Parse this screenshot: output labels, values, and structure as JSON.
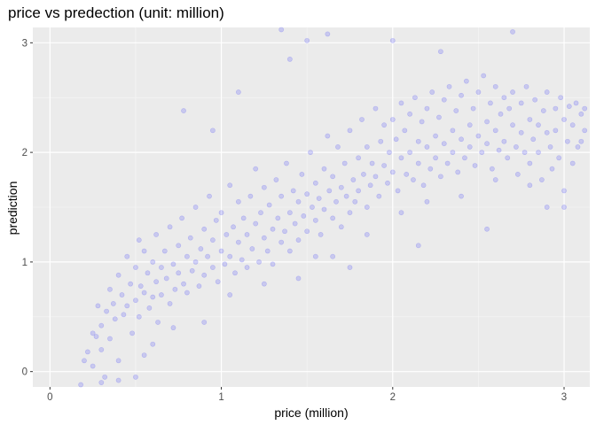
{
  "chart_data": {
    "type": "scatter",
    "title": "price vs predection (unit: million)",
    "xlabel": "price (million)",
    "ylabel": "prediction",
    "xlim": [
      -0.1,
      3.15
    ],
    "ylim": [
      -0.14,
      3.14
    ],
    "x_ticks": [
      0,
      1,
      2,
      3
    ],
    "y_ticks": [
      0,
      1,
      2,
      3
    ],
    "x_tick_labels": [
      "0",
      "1",
      "2",
      "3"
    ],
    "y_tick_labels": [
      "0",
      "1",
      "2",
      "3"
    ],
    "grid": true,
    "legend": "none",
    "series": [
      {
        "color": "#0000ff",
        "opacity": 0.15,
        "points": [
          [
            0.18,
            -0.12
          ],
          [
            0.2,
            0.1
          ],
          [
            0.22,
            0.18
          ],
          [
            0.25,
            0.05
          ],
          [
            0.27,
            0.32
          ],
          [
            0.28,
            0.6
          ],
          [
            0.3,
            0.42
          ],
          [
            0.3,
            0.2
          ],
          [
            0.32,
            -0.05
          ],
          [
            0.33,
            0.55
          ],
          [
            0.35,
            0.75
          ],
          [
            0.35,
            0.3
          ],
          [
            0.37,
            0.62
          ],
          [
            0.38,
            0.48
          ],
          [
            0.4,
            0.88
          ],
          [
            0.4,
            0.1
          ],
          [
            0.42,
            0.7
          ],
          [
            0.43,
            0.52
          ],
          [
            0.45,
            1.05
          ],
          [
            0.45,
            0.6
          ],
          [
            0.47,
            0.8
          ],
          [
            0.48,
            0.35
          ],
          [
            0.5,
            0.95
          ],
          [
            0.5,
            0.65
          ],
          [
            0.52,
            1.2
          ],
          [
            0.52,
            0.5
          ],
          [
            0.53,
            0.78
          ],
          [
            0.55,
            1.1
          ],
          [
            0.55,
            0.72
          ],
          [
            0.57,
            0.9
          ],
          [
            0.58,
            0.58
          ],
          [
            0.6,
            1.0
          ],
          [
            0.6,
            0.68
          ],
          [
            0.62,
            1.25
          ],
          [
            0.62,
            0.82
          ],
          [
            0.63,
            0.45
          ],
          [
            0.65,
            0.95
          ],
          [
            0.65,
            0.7
          ],
          [
            0.67,
            1.1
          ],
          [
            0.68,
            0.85
          ],
          [
            0.7,
            1.32
          ],
          [
            0.7,
            0.62
          ],
          [
            0.72,
            0.98
          ],
          [
            0.73,
            0.75
          ],
          [
            0.75,
            1.15
          ],
          [
            0.75,
            0.9
          ],
          [
            0.77,
            1.4
          ],
          [
            0.78,
            0.8
          ],
          [
            0.8,
            1.05
          ],
          [
            0.8,
            0.72
          ],
          [
            0.82,
            1.22
          ],
          [
            0.83,
            0.92
          ],
          [
            0.85,
            1.5
          ],
          [
            0.85,
            1.0
          ],
          [
            0.87,
            0.78
          ],
          [
            0.88,
            1.12
          ],
          [
            0.9,
            1.3
          ],
          [
            0.9,
            0.88
          ],
          [
            0.92,
            1.05
          ],
          [
            0.93,
            1.6
          ],
          [
            0.95,
            0.95
          ],
          [
            0.95,
            1.2
          ],
          [
            0.97,
            1.38
          ],
          [
            0.98,
            0.82
          ],
          [
            1.0,
            1.1
          ],
          [
            1.0,
            1.45
          ],
          [
            1.02,
            0.98
          ],
          [
            1.03,
            1.25
          ],
          [
            1.05,
            1.7
          ],
          [
            1.05,
            1.05
          ],
          [
            1.07,
            1.32
          ],
          [
            1.08,
            0.9
          ],
          [
            1.1,
            1.18
          ],
          [
            1.1,
            1.55
          ],
          [
            1.12,
            1.02
          ],
          [
            1.13,
            1.4
          ],
          [
            1.15,
            1.25
          ],
          [
            1.15,
            0.95
          ],
          [
            1.17,
            1.6
          ],
          [
            1.18,
            1.12
          ],
          [
            1.2,
            1.35
          ],
          [
            1.2,
            1.85
          ],
          [
            1.22,
            1.0
          ],
          [
            1.23,
            1.45
          ],
          [
            1.25,
            1.22
          ],
          [
            1.25,
            1.68
          ],
          [
            1.27,
            1.1
          ],
          [
            1.28,
            1.52
          ],
          [
            1.3,
            1.3
          ],
          [
            1.3,
            0.98
          ],
          [
            1.32,
            1.75
          ],
          [
            1.33,
            1.4
          ],
          [
            1.35,
            1.18
          ],
          [
            1.35,
            1.6
          ],
          [
            1.37,
            1.28
          ],
          [
            1.38,
            1.9
          ],
          [
            1.4,
            1.45
          ],
          [
            1.4,
            1.1
          ],
          [
            1.42,
            1.65
          ],
          [
            1.43,
            1.35
          ],
          [
            1.45,
            1.55
          ],
          [
            1.45,
            1.2
          ],
          [
            1.47,
            1.8
          ],
          [
            1.48,
            1.42
          ],
          [
            1.5,
            1.62
          ],
          [
            1.5,
            1.28
          ],
          [
            1.52,
            2.0
          ],
          [
            1.53,
            1.5
          ],
          [
            1.55,
            1.72
          ],
          [
            1.55,
            1.38
          ],
          [
            1.57,
            1.58
          ],
          [
            1.58,
            1.25
          ],
          [
            1.6,
            1.85
          ],
          [
            1.6,
            1.48
          ],
          [
            1.62,
            2.15
          ],
          [
            1.63,
            1.65
          ],
          [
            1.65,
            1.4
          ],
          [
            1.65,
            1.78
          ],
          [
            1.67,
            1.55
          ],
          [
            1.68,
            2.05
          ],
          [
            1.7,
            1.68
          ],
          [
            1.7,
            1.32
          ],
          [
            1.72,
            1.9
          ],
          [
            1.73,
            1.6
          ],
          [
            1.75,
            1.45
          ],
          [
            1.75,
            2.2
          ],
          [
            1.77,
            1.75
          ],
          [
            1.78,
            1.55
          ],
          [
            1.8,
            1.95
          ],
          [
            1.8,
            1.65
          ],
          [
            1.82,
            2.3
          ],
          [
            1.83,
            1.8
          ],
          [
            1.85,
            1.5
          ],
          [
            1.85,
            2.05
          ],
          [
            1.87,
            1.7
          ],
          [
            1.88,
            1.9
          ],
          [
            1.9,
            2.4
          ],
          [
            1.9,
            1.78
          ],
          [
            1.92,
            1.6
          ],
          [
            1.93,
            2.1
          ],
          [
            1.95,
            1.88
          ],
          [
            1.95,
            2.25
          ],
          [
            1.97,
            1.72
          ],
          [
            1.98,
            2.0
          ],
          [
            2.0,
            2.3
          ],
          [
            2.0,
            1.82
          ],
          [
            2.02,
            2.12
          ],
          [
            2.03,
            1.65
          ],
          [
            2.05,
            2.45
          ],
          [
            2.05,
            1.95
          ],
          [
            2.07,
            2.2
          ],
          [
            2.08,
            1.8
          ],
          [
            2.1,
            2.35
          ],
          [
            2.1,
            2.0
          ],
          [
            2.12,
            1.75
          ],
          [
            2.13,
            2.5
          ],
          [
            2.15,
            2.1
          ],
          [
            2.15,
            1.9
          ],
          [
            2.17,
            2.28
          ],
          [
            2.18,
            1.7
          ],
          [
            2.2,
            2.4
          ],
          [
            2.2,
            2.05
          ],
          [
            2.22,
            1.85
          ],
          [
            2.23,
            2.55
          ],
          [
            2.25,
            2.15
          ],
          [
            2.25,
            1.95
          ],
          [
            2.27,
            2.32
          ],
          [
            2.28,
            1.78
          ],
          [
            2.3,
            2.48
          ],
          [
            2.3,
            2.08
          ],
          [
            2.32,
            1.9
          ],
          [
            2.33,
            2.6
          ],
          [
            2.35,
            2.2
          ],
          [
            2.35,
            2.0
          ],
          [
            2.37,
            2.38
          ],
          [
            2.38,
            1.82
          ],
          [
            2.4,
            2.52
          ],
          [
            2.4,
            2.12
          ],
          [
            2.42,
            1.95
          ],
          [
            2.43,
            2.65
          ],
          [
            2.45,
            2.25
          ],
          [
            2.45,
            2.05
          ],
          [
            2.47,
            2.4
          ],
          [
            2.48,
            1.88
          ],
          [
            2.5,
            2.55
          ],
          [
            2.5,
            2.15
          ],
          [
            2.52,
            2.0
          ],
          [
            2.53,
            2.7
          ],
          [
            2.55,
            2.28
          ],
          [
            2.55,
            2.08
          ],
          [
            2.57,
            2.45
          ],
          [
            2.58,
            1.85
          ],
          [
            2.6,
            2.6
          ],
          [
            2.6,
            2.2
          ],
          [
            2.62,
            2.02
          ],
          [
            2.63,
            2.35
          ],
          [
            2.65,
            2.5
          ],
          [
            2.65,
            2.1
          ],
          [
            2.67,
            1.95
          ],
          [
            2.68,
            2.4
          ],
          [
            2.7,
            2.25
          ],
          [
            2.7,
            2.55
          ],
          [
            2.72,
            2.05
          ],
          [
            2.73,
            1.8
          ],
          [
            2.75,
            2.45
          ],
          [
            2.75,
            2.18
          ],
          [
            2.77,
            2.0
          ],
          [
            2.78,
            2.6
          ],
          [
            2.8,
            2.3
          ],
          [
            2.8,
            1.9
          ],
          [
            2.82,
            2.12
          ],
          [
            2.83,
            2.48
          ],
          [
            2.85,
            2.25
          ],
          [
            2.85,
            2.0
          ],
          [
            2.87,
            1.75
          ],
          [
            2.88,
            2.38
          ],
          [
            2.9,
            2.18
          ],
          [
            2.9,
            2.55
          ],
          [
            2.92,
            2.05
          ],
          [
            2.93,
            1.85
          ],
          [
            2.95,
            2.4
          ],
          [
            2.95,
            2.2
          ],
          [
            2.97,
            1.95
          ],
          [
            2.98,
            2.5
          ],
          [
            3.0,
            2.3
          ],
          [
            3.0,
            1.5
          ],
          [
            3.02,
            2.1
          ],
          [
            3.03,
            2.42
          ],
          [
            3.05,
            2.25
          ],
          [
            3.05,
            1.9
          ],
          [
            3.07,
            2.45
          ],
          [
            3.08,
            2.05
          ],
          [
            3.1,
            2.35
          ],
          [
            3.1,
            2.1
          ],
          [
            3.12,
            2.2
          ],
          [
            3.12,
            2.4
          ],
          [
            1.35,
            3.12
          ],
          [
            1.5,
            3.02
          ],
          [
            1.62,
            3.08
          ],
          [
            2.7,
            3.1
          ],
          [
            2.0,
            3.02
          ],
          [
            2.28,
            2.92
          ],
          [
            1.4,
            2.85
          ],
          [
            0.78,
            2.38
          ],
          [
            0.95,
            2.2
          ],
          [
            1.1,
            2.55
          ],
          [
            0.3,
            -0.1
          ],
          [
            0.4,
            -0.08
          ],
          [
            0.25,
            0.35
          ],
          [
            0.6,
            0.25
          ],
          [
            0.55,
            0.15
          ],
          [
            0.72,
            0.4
          ],
          [
            0.9,
            0.45
          ],
          [
            1.05,
            0.7
          ],
          [
            1.25,
            0.8
          ],
          [
            1.45,
            0.85
          ],
          [
            1.65,
            1.05
          ],
          [
            1.85,
            1.25
          ],
          [
            2.05,
            1.45
          ],
          [
            2.2,
            1.55
          ],
          [
            2.4,
            1.6
          ],
          [
            2.6,
            1.75
          ],
          [
            2.8,
            1.7
          ],
          [
            3.0,
            1.65
          ],
          [
            2.15,
            1.15
          ],
          [
            2.55,
            1.3
          ],
          [
            2.9,
            1.5
          ],
          [
            1.75,
            0.95
          ],
          [
            1.55,
            1.05
          ],
          [
            0.5,
            -0.05
          ]
        ]
      }
    ]
  }
}
